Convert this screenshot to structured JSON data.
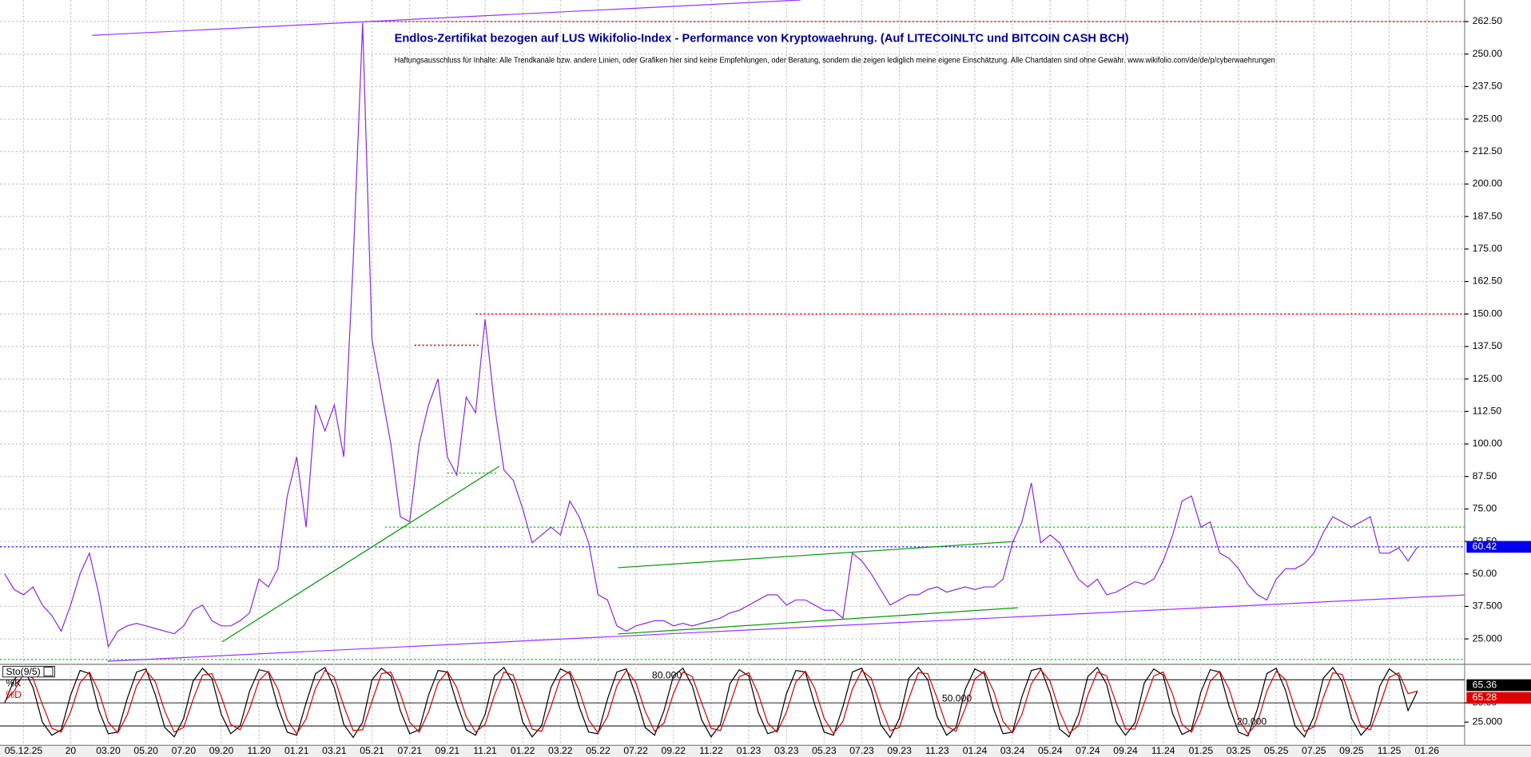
{
  "chart_data": [
    {
      "type": "line",
      "title": "Endlos-Zertifikat bezogen auf LUS Wikifolio-Index - Performance von Kryptowaehrung. (Auf LITECOINLTC und BITCOIN CASH BCH)",
      "subtitle": "Haftungsausschluss für Inhalte: Alle Trendkanäle bzw. andere Linien, oder Grafiken hier sind keine Empfehlungen, oder Beratung, sondern die zeigen lediglich meine eigene Einschätzung. Alle Chartdaten sind ohne Gewähr.  www.wikifolio.com/de/de/p/cyberwaehrungen",
      "xlim": [
        -0.5,
        155
      ],
      "xticks": [
        {
          "value": 2,
          "label": "05.12.25"
        },
        {
          "value": 7,
          "label": "20"
        },
        {
          "value": 11,
          "label": "03.20"
        },
        {
          "value": 15,
          "label": "05.20"
        },
        {
          "value": 19,
          "label": "07.20"
        },
        {
          "value": 23,
          "label": "09.20"
        },
        {
          "value": 27,
          "label": "11.20"
        },
        {
          "value": 31,
          "label": "01.21"
        },
        {
          "value": 35,
          "label": "03.21"
        },
        {
          "value": 39,
          "label": "05.21"
        },
        {
          "value": 43,
          "label": "07.21"
        },
        {
          "value": 47,
          "label": "09.21"
        },
        {
          "value": 51,
          "label": "11.21"
        },
        {
          "value": 55,
          "label": "01.22"
        },
        {
          "value": 59,
          "label": "03.22"
        },
        {
          "value": 63,
          "label": "05.22"
        },
        {
          "value": 67,
          "label": "07.22"
        },
        {
          "value": 71,
          "label": "09.22"
        },
        {
          "value": 75,
          "label": "11.22"
        },
        {
          "value": 79,
          "label": "01.23"
        },
        {
          "value": 83,
          "label": "03.23"
        },
        {
          "value": 87,
          "label": "05.23"
        },
        {
          "value": 91,
          "label": "07.23"
        },
        {
          "value": 95,
          "label": "09.23"
        },
        {
          "value": 99,
          "label": "11.23"
        },
        {
          "value": 103,
          "label": "01.24"
        },
        {
          "value": 107,
          "label": "03.24"
        },
        {
          "value": 111,
          "label": "05.24"
        },
        {
          "value": 115,
          "label": "07.24"
        },
        {
          "value": 119,
          "label": "09.24"
        },
        {
          "value": 123,
          "label": "11.24"
        },
        {
          "value": 127,
          "label": "01.25"
        },
        {
          "value": 131,
          "label": "03.25"
        },
        {
          "value": 135,
          "label": "05.25"
        },
        {
          "value": 139,
          "label": "07.25"
        },
        {
          "value": 143,
          "label": "09.25"
        },
        {
          "value": 147,
          "label": "11.25"
        },
        {
          "value": 151,
          "label": "01.26"
        }
      ],
      "ylim": [
        15.6,
        270.8
      ],
      "yticks": [
        {
          "value": 262.5,
          "label": "262.50"
        },
        {
          "value": 250,
          "label": "250.00"
        },
        {
          "value": 237.5,
          "label": "237.50"
        },
        {
          "value": 225,
          "label": "225.00"
        },
        {
          "value": 212.5,
          "label": "212.50"
        },
        {
          "value": 200,
          "label": "200.00"
        },
        {
          "value": 187.5,
          "label": "187.50"
        },
        {
          "value": 175,
          "label": "175.00"
        },
        {
          "value": 162.5,
          "label": "162.50"
        },
        {
          "value": 150,
          "label": "150.00"
        },
        {
          "value": 137.5,
          "label": "137.50"
        },
        {
          "value": 125,
          "label": "125.00"
        },
        {
          "value": 112.5,
          "label": "112.50"
        },
        {
          "value": 100,
          "label": "100.00"
        },
        {
          "value": 87.5,
          "label": "87.50"
        },
        {
          "value": 75,
          "label": "75.00"
        },
        {
          "value": 62.5,
          "label": "62.50"
        },
        {
          "value": 50,
          "label": "50.00"
        },
        {
          "value": 37.5,
          "label": "37.500"
        },
        {
          "value": 25,
          "label": "25.000"
        }
      ],
      "grid": true,
      "series": [
        {
          "color": "#8a2be2",
          "values": [
            50,
            44,
            42,
            45,
            38,
            34,
            28,
            38,
            50,
            58,
            42,
            22,
            28,
            30,
            31,
            30,
            29,
            28,
            27,
            30,
            36,
            38,
            32,
            30,
            30,
            32,
            35,
            48,
            45,
            52,
            80,
            95,
            68,
            115,
            105,
            115,
            95,
            170,
            262,
            140,
            120,
            100,
            72,
            70,
            100,
            115,
            125,
            95,
            88,
            118,
            112,
            148,
            115,
            90,
            86,
            75,
            62,
            65,
            68,
            65,
            78,
            72,
            62,
            42,
            40,
            30,
            28,
            30,
            31,
            32,
            32,
            30,
            31,
            30,
            31,
            32,
            33,
            35,
            36,
            38,
            40,
            42,
            42,
            38,
            40,
            40,
            38,
            36,
            36,
            33,
            58,
            55,
            50,
            44,
            38,
            40,
            42,
            42,
            44,
            45,
            43,
            44,
            45,
            44,
            45,
            45,
            48,
            62,
            70,
            85,
            62,
            65,
            62,
            55,
            48,
            45,
            48,
            42,
            43,
            45,
            47,
            46,
            48,
            55,
            65,
            78,
            80,
            68,
            70,
            58,
            56,
            52,
            46,
            42,
            40,
            48,
            52,
            52,
            54,
            58,
            66,
            72,
            70,
            68,
            70,
            72,
            58,
            58,
            60,
            55,
            60.42
          ]
        }
      ],
      "last_value": {
        "value": 60.42,
        "label": "60.42"
      },
      "trendlines": [
        {
          "x1": 9.3,
          "y1": 257.2,
          "x2": 84.5,
          "y2": 270.8,
          "color": "#9933ff"
        },
        {
          "x1": 10.9,
          "y1": 16.4,
          "x2": 155,
          "y2": 41.9,
          "color": "#9933ff"
        },
        {
          "x1": 23.1,
          "y1": 23.9,
          "x2": 52.5,
          "y2": 91.4,
          "color": "#009900"
        },
        {
          "x1": 65.1,
          "y1": 52.4,
          "x2": 107.3,
          "y2": 62.5,
          "color": "#009900"
        },
        {
          "x1": 65.1,
          "y1": 26.9,
          "x2": 107.6,
          "y2": 37.0,
          "color": "#009900"
        }
      ],
      "hlines": [
        {
          "value": 262.5,
          "from": 38.3,
          "to": 155,
          "color": "#dd0000"
        },
        {
          "value": 150,
          "from": 50,
          "to": 155,
          "color": "#dd0000"
        },
        {
          "value": 138,
          "from": 43.5,
          "to": 50.3,
          "color": "#dd0000"
        },
        {
          "value": 68,
          "from": 40.4,
          "to": 155,
          "color": "#00cc00"
        },
        {
          "value": 88.8,
          "from": 47,
          "to": 52.3,
          "color": "#00cc00"
        },
        {
          "value": 17.1,
          "from": -0.5,
          "to": 155,
          "color": "#00cc00"
        },
        {
          "value": 60.42,
          "from": -0.5,
          "to": 155,
          "color": "#0000ee"
        }
      ]
    },
    {
      "type": "stochastic",
      "title": "Sto(9/5)",
      "xlim": [
        -0.5,
        155
      ],
      "ylim": [
        0,
        100
      ],
      "yticks": [
        {
          "value": 50,
          "label": "50.00"
        },
        {
          "value": 25,
          "label": "25.000"
        }
      ],
      "levels": [
        {
          "value": 80,
          "label": "80.000"
        },
        {
          "value": 50,
          "label": "50.000"
        },
        {
          "value": 20,
          "label": "20.000"
        }
      ],
      "series": [
        {
          "name": "%K",
          "color": "#000000",
          "last_label": "65.36",
          "values": [
            50,
            80,
            95,
            70,
            25,
            8,
            15,
            60,
            92,
            88,
            40,
            10,
            12,
            55,
            90,
            94,
            60,
            18,
            6,
            30,
            78,
            95,
            82,
            35,
            10,
            20,
            65,
            93,
            90,
            45,
            12,
            8,
            50,
            88,
            96,
            70,
            22,
            5,
            25,
            80,
            95,
            85,
            40,
            10,
            15,
            60,
            92,
            90,
            50,
            15,
            8,
            35,
            85,
            96,
            75,
            25,
            6,
            20,
            70,
            94,
            88,
            45,
            12,
            10,
            55,
            90,
            94,
            60,
            18,
            8,
            40,
            85,
            95,
            72,
            28,
            6,
            22,
            75,
            93,
            85,
            38,
            10,
            14,
            62,
            92,
            90,
            48,
            12,
            8,
            45,
            90,
            95,
            68,
            22,
            5,
            30,
            82,
            96,
            80,
            32,
            8,
            18,
            68,
            94,
            88,
            42,
            10,
            12,
            58,
            92,
            95,
            62,
            16,
            6,
            35,
            84,
            96,
            74,
            25,
            8,
            24,
            76,
            94,
            86,
            36,
            9,
            15,
            64,
            93,
            90,
            46,
            12,
            7,
            42,
            88,
            95,
            66,
            20,
            6,
            32,
            82,
            96,
            78,
            30,
            8,
            22,
            72,
            94,
            85,
            40,
            65.36
          ]
        },
        {
          "name": "%D",
          "color": "#dd0000",
          "last_label": "65.28",
          "values": [
            52,
            65,
            88,
            82,
            48,
            17,
            12,
            38,
            76,
            90,
            64,
            25,
            11,
            34,
            72,
            92,
            77,
            39,
            12,
            18,
            54,
            86,
            88,
            58,
            22,
            15,
            42,
            79,
            91,
            68,
            28,
            10,
            29,
            69,
            92,
            83,
            46,
            14,
            15,
            52,
            88,
            90,
            62,
            25,
            12,
            38,
            76,
            91,
            70,
            32,
            12,
            22,
            60,
            90,
            86,
            50,
            16,
            13,
            45,
            82,
            91,
            66,
            28,
            11,
            32,
            72,
            92,
            77,
            39,
            13,
            24,
            62,
            90,
            84,
            50,
            17,
            14,
            48,
            84,
            89,
            62,
            24,
            12,
            38,
            77,
            91,
            69,
            30,
            10,
            26,
            68,
            92,
            82,
            45,
            14,
            18,
            56,
            89,
            88,
            56,
            20,
            13,
            43,
            81,
            91,
            65,
            26,
            11,
            35,
            75,
            93,
            78,
            39,
            11,
            20,
            60,
            90,
            85,
            50,
            16,
            16,
            50,
            85,
            90,
            61,
            22,
            12,
            40,
            78,
            91,
            68,
            29,
            10,
            24,
            65,
            91,
            80,
            43,
            13,
            19,
            57,
            89,
            87,
            54,
            19,
            15,
            47,
            83,
            89,
            62,
            65.28
          ]
        }
      ]
    }
  ]
}
